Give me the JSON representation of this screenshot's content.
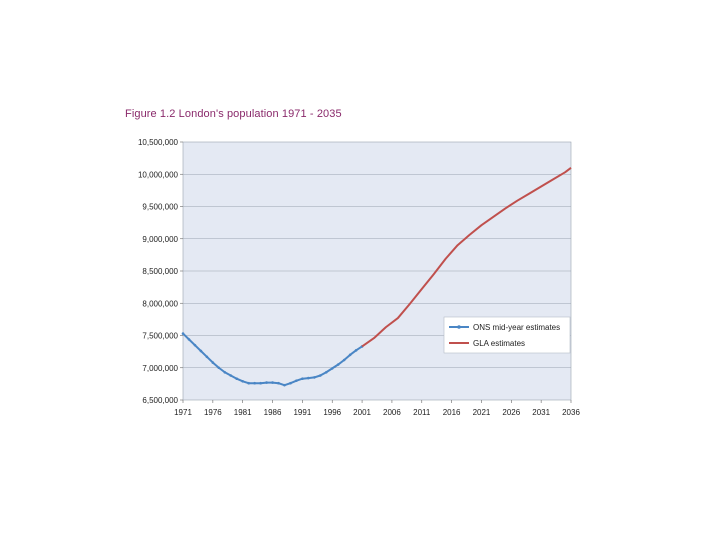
{
  "title": "Figure 1.2 London's population 1971 - 2035",
  "chart_data": {
    "type": "line",
    "title": "Figure 1.2 London's population 1971 - 2035",
    "xlabel": "",
    "ylabel": "",
    "xlim": [
      1971,
      2036
    ],
    "ylim": [
      6500000,
      10500000
    ],
    "x_ticks": [
      1971,
      1976,
      1981,
      1986,
      1991,
      1996,
      2001,
      2006,
      2011,
      2016,
      2021,
      2026,
      2031,
      2036
    ],
    "x_tick_labels": [
      "1971",
      "1976",
      "1981",
      "1986",
      "1991",
      "1996",
      "2001",
      "2006",
      "2011",
      "2016",
      "2021",
      "2026",
      "2031",
      "2036"
    ],
    "y_ticks": [
      6500000,
      7000000,
      7500000,
      8000000,
      8500000,
      9000000,
      9500000,
      10000000,
      10500000
    ],
    "y_tick_labels": [
      "6,500,000",
      "7,000,000",
      "7,500,000",
      "8,000,000",
      "8,500,000",
      "9,000,000",
      "9,500,000",
      "10,000,000",
      "10,500,000"
    ],
    "grid": true,
    "legend_position": "right",
    "series": [
      {
        "name": "ONS mid-year estimates",
        "color": "#4a86c5",
        "markers": true,
        "x": [
          1971,
          1972,
          1973,
          1974,
          1975,
          1976,
          1977,
          1978,
          1979,
          1980,
          1981,
          1982,
          1983,
          1984,
          1985,
          1986,
          1987,
          1988,
          1989,
          1990,
          1991,
          1992,
          1993,
          1994,
          1995,
          1996,
          1997,
          1998,
          1999,
          2000,
          2001
        ],
        "values": [
          7530000,
          7440000,
          7350000,
          7260000,
          7170000,
          7080000,
          7000000,
          6930000,
          6880000,
          6830000,
          6790000,
          6760000,
          6760000,
          6760000,
          6770000,
          6770000,
          6760000,
          6730000,
          6760000,
          6800000,
          6830000,
          6840000,
          6850000,
          6880000,
          6930000,
          6990000,
          7050000,
          7120000,
          7200000,
          7270000,
          7330000
        ]
      },
      {
        "name": "GLA estimates",
        "color": "#c0504d",
        "markers": false,
        "x": [
          2001,
          2003,
          2005,
          2007,
          2009,
          2011,
          2013,
          2015,
          2017,
          2019,
          2021,
          2023,
          2025,
          2027,
          2029,
          2031,
          2033,
          2035,
          2036
        ],
        "values": [
          7330000,
          7460000,
          7630000,
          7770000,
          7990000,
          8220000,
          8450000,
          8690000,
          8900000,
          9060000,
          9210000,
          9340000,
          9470000,
          9590000,
          9700000,
          9810000,
          9920000,
          10030000,
          10100000
        ]
      }
    ]
  }
}
